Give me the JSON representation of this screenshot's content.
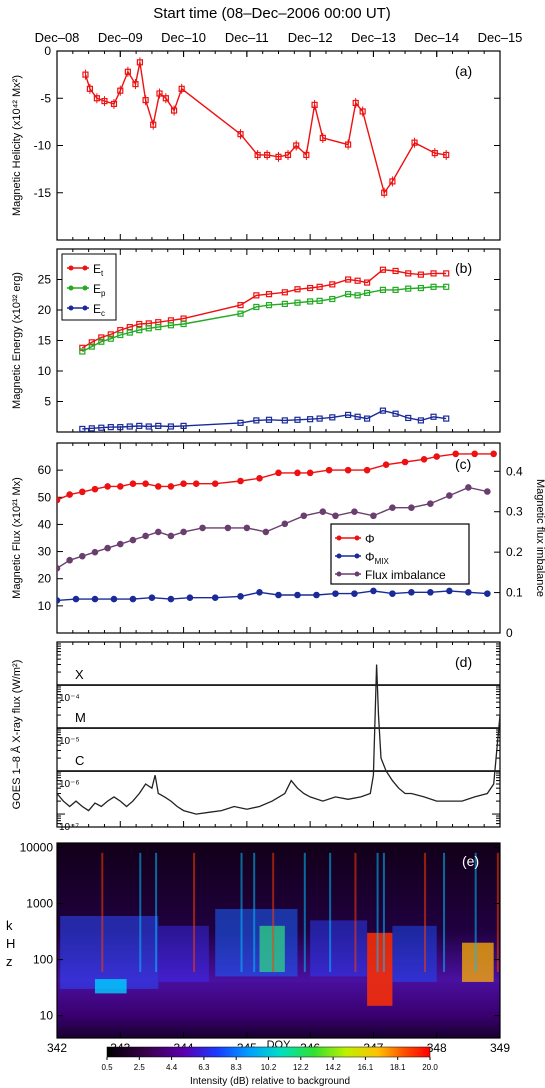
{
  "title": "Start time (08–Dec–2006 00:00 UT)",
  "top_axis_dates": [
    "Dec–08",
    "Dec–09",
    "Dec–10",
    "Dec–11",
    "Dec–12",
    "Dec–13",
    "Dec–14",
    "Dec–15"
  ],
  "colors": {
    "red": "#ee1111",
    "green": "#22aa22",
    "blue": "#1a2b99",
    "purple": "#6a3f6f",
    "black": "#222222"
  },
  "chart_data": [
    {
      "panel": "(a)",
      "type": "line",
      "ylabel": "Magnetic Helicity (x10⁴² Mx²)",
      "ylim": [
        -20,
        0
      ],
      "yticks": [
        0,
        -5,
        -10,
        -15
      ],
      "x_unit": "day of December 2006",
      "series": [
        {
          "color": "red",
          "x": [
            8.45,
            8.52,
            8.63,
            8.75,
            8.9,
            9.0,
            9.12,
            9.24,
            9.31,
            9.4,
            9.52,
            9.62,
            9.72,
            9.85,
            9.97,
            10.9,
            11.17,
            11.32,
            11.5,
            11.65,
            11.78,
            11.94,
            12.07,
            12.2,
            12.6,
            12.72,
            12.83,
            13.17,
            13.3,
            13.65,
            13.97,
            14.15
          ],
          "y": [
            -2.5,
            -4.0,
            -5.0,
            -5.3,
            -5.6,
            -4.2,
            -2.2,
            -3.5,
            -1.2,
            -5.2,
            -7.8,
            -4.5,
            -5.0,
            -6.3,
            -4.0,
            -8.8,
            -11.0,
            -11.0,
            -11.2,
            -11.0,
            -10.0,
            -11.0,
            -5.7,
            -9.2,
            -9.9,
            -5.5,
            -6.4,
            -15.0,
            -13.8,
            -9.7,
            -10.8,
            -11.0
          ]
        }
      ],
      "panel_label": "(a)"
    },
    {
      "panel": "(b)",
      "type": "line",
      "ylabel": "Magnetic Energy (x10³² erg)",
      "ylim": [
        0,
        30
      ],
      "yticks": [
        5,
        10,
        15,
        20,
        25
      ],
      "legend": [
        "E_t",
        "E_p",
        "E_c"
      ],
      "series": [
        {
          "name": "E_t",
          "color": "red",
          "x": [
            8.4,
            8.55,
            8.7,
            8.85,
            9.0,
            9.15,
            9.3,
            9.45,
            9.6,
            9.8,
            10.0,
            10.9,
            11.15,
            11.35,
            11.6,
            11.8,
            12.0,
            12.15,
            12.35,
            12.6,
            12.75,
            12.9,
            13.15,
            13.35,
            13.55,
            13.75,
            13.95,
            14.15
          ],
          "y": [
            13.8,
            14.7,
            15.5,
            16.0,
            16.7,
            17.2,
            17.7,
            17.8,
            18.0,
            18.3,
            18.6,
            20.8,
            22.4,
            22.6,
            22.9,
            23.4,
            23.6,
            23.8,
            24.2,
            25.0,
            24.8,
            24.5,
            26.6,
            26.4,
            26.0,
            25.8,
            26.0,
            26.0
          ]
        },
        {
          "name": "E_p",
          "color": "green",
          "x": [
            8.4,
            8.55,
            8.7,
            8.85,
            9.0,
            9.15,
            9.3,
            9.45,
            9.6,
            9.8,
            10.0,
            10.9,
            11.15,
            11.35,
            11.6,
            11.8,
            12.0,
            12.15,
            12.35,
            12.6,
            12.75,
            12.9,
            13.15,
            13.35,
            13.55,
            13.75,
            13.95,
            14.15
          ],
          "y": [
            13.2,
            14.0,
            14.8,
            15.3,
            15.9,
            16.3,
            16.7,
            17.0,
            17.2,
            17.5,
            17.7,
            19.4,
            20.5,
            20.8,
            21.0,
            21.2,
            21.4,
            21.5,
            21.8,
            22.6,
            22.4,
            22.8,
            23.3,
            23.3,
            23.5,
            23.6,
            23.8,
            23.8
          ]
        },
        {
          "name": "E_c",
          "color": "blue",
          "x": [
            8.4,
            8.55,
            8.7,
            8.85,
            9.0,
            9.15,
            9.3,
            9.45,
            9.6,
            9.8,
            10.0,
            10.9,
            11.15,
            11.35,
            11.6,
            11.8,
            12.0,
            12.15,
            12.35,
            12.6,
            12.75,
            12.9,
            13.15,
            13.35,
            13.55,
            13.75,
            13.95,
            14.15
          ],
          "y": [
            0.5,
            0.6,
            0.7,
            0.8,
            0.8,
            0.9,
            1.0,
            0.9,
            1.0,
            0.9,
            1.0,
            1.5,
            1.9,
            2.0,
            1.9,
            2.0,
            2.1,
            2.2,
            2.4,
            2.8,
            2.5,
            2.2,
            3.5,
            3.0,
            2.3,
            1.9,
            2.5,
            2.2
          ]
        }
      ],
      "panel_label": "(b)"
    },
    {
      "panel": "(c)",
      "type": "line",
      "ylabel": "Magnetic Flux (x10²¹ Mx)",
      "ylabel_right": "Magnetic flux imbalance",
      "ylim": [
        0,
        70
      ],
      "yticks": [
        10,
        20,
        30,
        40,
        50,
        60
      ],
      "ylim_right": [
        0,
        0.47
      ],
      "yticks_right": [
        0,
        0.1,
        0.2,
        0.3,
        0.4
      ],
      "legend": [
        "Φ",
        "ΦMIX",
        "Flux imbalance"
      ],
      "series": [
        {
          "name": "Φ",
          "color": "red",
          "axis": "left",
          "x": [
            8.0,
            8.2,
            8.4,
            8.6,
            8.8,
            9.0,
            9.2,
            9.4,
            9.6,
            9.8,
            10.0,
            10.2,
            10.5,
            10.9,
            11.2,
            11.5,
            11.8,
            12.0,
            12.3,
            12.6,
            12.9,
            13.2,
            13.5,
            13.8,
            14.0,
            14.3,
            14.6,
            14.9
          ],
          "y": [
            49,
            51,
            52,
            53,
            54,
            54,
            55,
            55,
            54,
            54,
            55,
            55,
            55,
            56,
            57,
            59,
            59,
            59,
            60,
            60,
            60,
            62,
            63,
            64,
            65,
            66,
            66,
            66
          ]
        },
        {
          "name": "ΦMIX",
          "color": "blue",
          "axis": "left",
          "x": [
            8.0,
            8.3,
            8.6,
            8.9,
            9.2,
            9.5,
            9.8,
            10.1,
            10.5,
            10.9,
            11.2,
            11.5,
            11.8,
            12.1,
            12.4,
            12.7,
            13.0,
            13.3,
            13.6,
            13.9,
            14.2,
            14.5,
            14.8
          ],
          "y": [
            12,
            12.5,
            12.5,
            12.5,
            12.5,
            13,
            12.5,
            13,
            13,
            13.5,
            15,
            14,
            14,
            14,
            14.5,
            14.5,
            15.5,
            14.5,
            15,
            15,
            15.5,
            15,
            14.5
          ]
        },
        {
          "name": "Flux imbalance",
          "color": "purple",
          "axis": "right",
          "x": [
            8.0,
            8.2,
            8.4,
            8.6,
            8.8,
            9.0,
            9.2,
            9.4,
            9.6,
            9.8,
            10.0,
            10.3,
            10.7,
            11.0,
            11.3,
            11.6,
            11.9,
            12.2,
            12.4,
            12.7,
            13.0,
            13.3,
            13.6,
            13.9,
            14.2,
            14.5,
            14.8
          ],
          "y": [
            0.16,
            0.18,
            0.19,
            0.2,
            0.21,
            0.22,
            0.23,
            0.24,
            0.25,
            0.24,
            0.25,
            0.26,
            0.26,
            0.26,
            0.25,
            0.27,
            0.29,
            0.3,
            0.29,
            0.3,
            0.29,
            0.31,
            0.31,
            0.32,
            0.34,
            0.36,
            0.35
          ]
        }
      ],
      "panel_label": "(c)"
    },
    {
      "panel": "(d)",
      "type": "line",
      "ylabel": "GOES 1–8 Å X-ray flux (W/m²)",
      "y_scale": "log",
      "ylim": [
        5e-08,
        0.001
      ],
      "ytick_labels": [
        "10⁻⁴",
        "10⁻⁵",
        "10⁻⁶",
        "10⁻⁷"
      ],
      "ytick_values": [
        0.0001,
        1e-05,
        1e-06,
        1e-07
      ],
      "class_lines": [
        {
          "label": "X",
          "value": 0.0001
        },
        {
          "label": "M",
          "value": 1e-05
        },
        {
          "label": "C",
          "value": 1e-06
        }
      ],
      "series": [
        {
          "color": "black",
          "x": [
            8.0,
            8.1,
            8.2,
            8.3,
            8.4,
            8.5,
            8.6,
            8.7,
            8.8,
            8.9,
            9.0,
            9.1,
            9.2,
            9.3,
            9.4,
            9.5,
            9.55,
            9.6,
            9.7,
            9.8,
            9.9,
            10.0,
            10.2,
            10.4,
            10.6,
            10.8,
            11.0,
            11.2,
            11.4,
            11.6,
            11.7,
            11.8,
            11.9,
            12.0,
            12.2,
            12.4,
            12.6,
            12.8,
            12.95,
            13.0,
            13.05,
            13.08,
            13.12,
            13.2,
            13.3,
            13.4,
            13.5,
            13.6,
            13.8,
            14.0,
            14.2,
            14.4,
            14.6,
            14.8,
            14.9,
            15.0
          ],
          "y": [
            3e-07,
            2e-07,
            1.5e-07,
            2e-07,
            1.5e-07,
            1.2e-07,
            1.8e-07,
            1.5e-07,
            2e-07,
            2.5e-07,
            2e-07,
            1.5e-07,
            2e-07,
            3e-07,
            5e-07,
            4e-07,
            8e-07,
            3e-07,
            2.5e-07,
            2e-07,
            1.5e-07,
            1.2e-07,
            1e-07,
            1.1e-07,
            1.2e-07,
            1.5e-07,
            1.3e-07,
            1.5e-07,
            2e-07,
            3e-07,
            6e-07,
            4e-07,
            3e-07,
            2.5e-07,
            2e-07,
            2.5e-07,
            2.2e-07,
            2.5e-07,
            3e-07,
            8e-07,
            0.0003,
            2e-05,
            2e-06,
            1e-06,
            6e-07,
            4e-07,
            3e-07,
            3e-07,
            2.5e-07,
            2e-07,
            2e-07,
            2e-07,
            2.5e-07,
            3e-07,
            5e-07,
            2e-05
          ]
        }
      ],
      "panel_label": "(d)"
    },
    {
      "panel": "(e)",
      "type": "heatmap",
      "ylabel": "kHz",
      "xlabel": "DOY",
      "y_scale": "log",
      "ylim": [
        4,
        12000
      ],
      "ytick_labels": [
        "10000",
        "1000",
        "100",
        "10"
      ],
      "ytick_values": [
        10000,
        1000,
        100,
        10
      ],
      "xlim": [
        342,
        349
      ],
      "xtick_labels": [
        "342",
        "343",
        "344",
        "345",
        "346",
        "347",
        "348",
        "349"
      ],
      "colorbar_label": "Intensity (dB) relative to background",
      "colorbar_ticks": [
        "0.5",
        "2.5",
        "4.4",
        "6.3",
        "8.3",
        "10.2",
        "12.2",
        "14.2",
        "16.1",
        "18.1",
        "20.0"
      ],
      "colorbar_range": [
        0.5,
        20.0
      ],
      "panel_label": "(e)"
    }
  ]
}
